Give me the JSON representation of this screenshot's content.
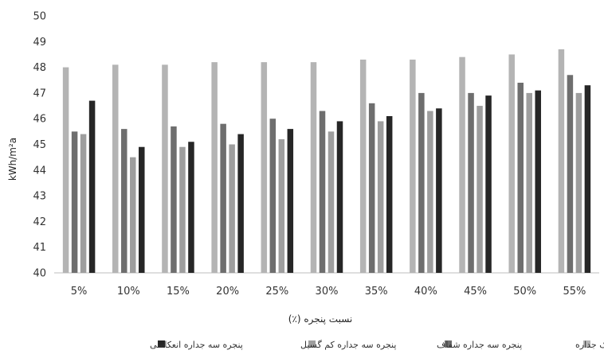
{
  "chart_data": {
    "type": "bar",
    "categories": [
      "5%",
      "10%",
      "15%",
      "20%",
      "25%",
      "30%",
      "35%",
      "40%",
      "45%",
      "50%",
      "55%"
    ],
    "series": [
      {
        "name": "پنجره یک جداره",
        "color": "#b4b4b4",
        "values": [
          48.0,
          48.1,
          48.1,
          48.2,
          48.2,
          48.2,
          48.3,
          48.3,
          48.4,
          48.5,
          48.7
        ]
      },
      {
        "name": "پنجره سه جداره شفاف",
        "color": "#6e6e6e",
        "values": [
          45.5,
          45.6,
          45.7,
          45.8,
          46.0,
          46.3,
          46.6,
          47.0,
          47.0,
          47.4,
          47.7
        ]
      },
      {
        "name": "پنجره سه جداره کم گسیل",
        "color": "#9e9e9e",
        "values": [
          45.4,
          44.5,
          44.9,
          45.0,
          45.2,
          45.5,
          45.9,
          46.3,
          46.5,
          47.0,
          47.0
        ]
      },
      {
        "name": "پنجره سه جداره انعکاسی",
        "color": "#262626",
        "values": [
          46.7,
          44.9,
          45.1,
          45.4,
          45.6,
          45.9,
          46.1,
          46.4,
          46.9,
          47.1,
          47.3
        ]
      }
    ],
    "xlabel": "نسبت پنجره (٪)",
    "ylabel": "kWh/m²a",
    "ylim": [
      40,
      50
    ],
    "yticks": [
      40,
      41,
      42,
      43,
      44,
      45,
      46,
      47,
      48,
      49,
      50
    ],
    "grid": false,
    "legend_position": "bottom"
  }
}
